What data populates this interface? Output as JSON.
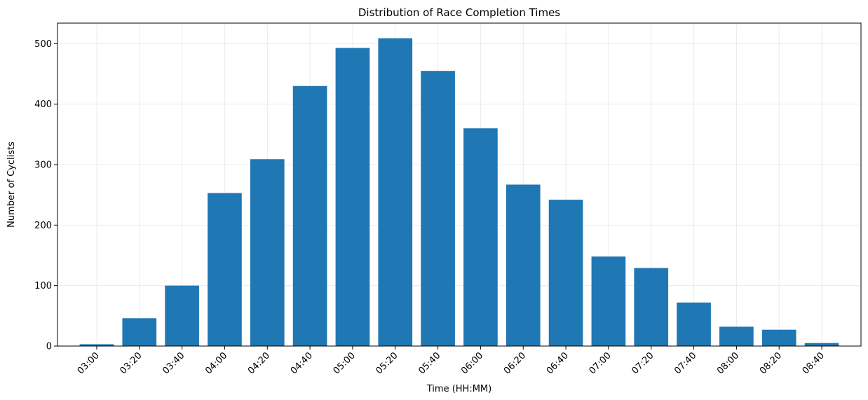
{
  "chart_data": {
    "type": "bar",
    "title": "Distribution of Race Completion Times",
    "xlabel": "Time (HH:MM)",
    "ylabel": "Number of Cyclists",
    "categories": [
      "03:00",
      "03:20",
      "03:40",
      "04:00",
      "04:20",
      "04:40",
      "05:00",
      "05:20",
      "05:40",
      "06:00",
      "06:20",
      "06:40",
      "07:00",
      "07:20",
      "07:40",
      "08:00",
      "08:20",
      "08:40"
    ],
    "values": [
      3,
      46,
      100,
      253,
      309,
      430,
      493,
      509,
      455,
      360,
      267,
      242,
      148,
      129,
      72,
      32,
      27,
      5
    ],
    "ylim": [
      0,
      534
    ],
    "yticks": [
      0,
      100,
      200,
      300,
      400,
      500
    ],
    "grid": true,
    "bar_color": "#1f77b4"
  }
}
